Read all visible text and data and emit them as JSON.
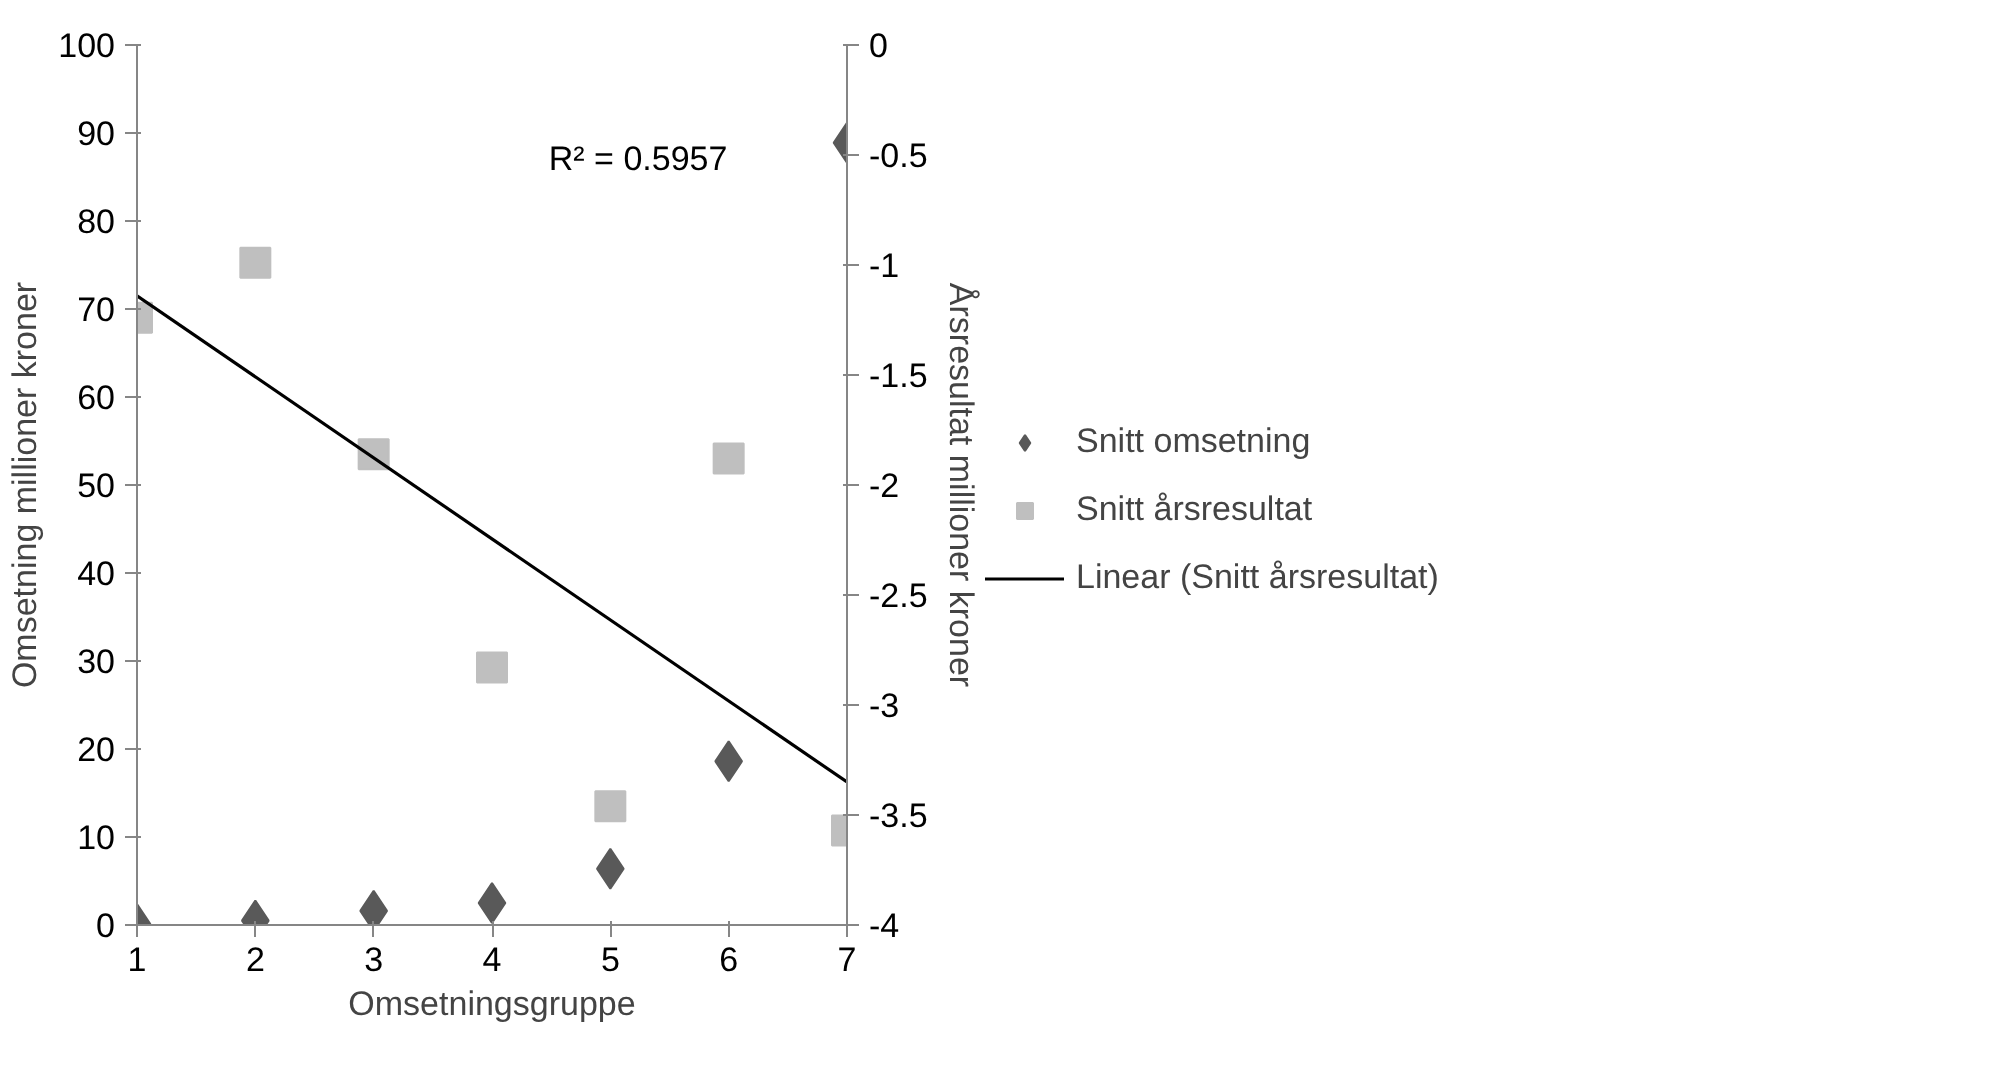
{
  "chart_data": {
    "type": "scatter",
    "xlabel": "Omsetningsgruppe",
    "ylabel": "Omsetning millioner kroner",
    "y2label": "Årsresultat millioner kroner",
    "x": [
      1,
      2,
      3,
      4,
      5,
      6,
      7
    ],
    "series": [
      {
        "name": "Snitt omsetning",
        "color": "#595959",
        "marker": "diamond",
        "values": [
          0.1,
          0.5,
          1.6,
          2.5,
          6.4,
          18.6,
          88.9
        ]
      },
      {
        "name": "Snitt årsresultat",
        "color": "#bfbfbf",
        "marker": "square",
        "axis": "y2",
        "values": [
          -1.24,
          -0.99,
          -1.86,
          -2.83,
          -3.46,
          -1.88,
          -3.57
        ]
      },
      {
        "name": "Linear (Snitt årsresultat)",
        "type": "line",
        "color": "#000000",
        "axis": "y2",
        "x": [
          1,
          7
        ],
        "values": [
          -1.14,
          -3.35
        ]
      }
    ],
    "annotations": [
      "R² = 0.5957"
    ],
    "xlim": [
      1,
      7
    ],
    "xticks": [
      1,
      2,
      3,
      4,
      5,
      6,
      7
    ],
    "ylim": [
      0,
      100
    ],
    "yticks": [
      0,
      10,
      20,
      30,
      40,
      50,
      60,
      70,
      80,
      90,
      100
    ],
    "y2lim": [
      -4,
      0
    ],
    "y2ticks": [
      -4,
      -3.5,
      -3,
      -2.5,
      -2,
      -1.5,
      -1,
      -0.5,
      0
    ],
    "grid": false,
    "legend": "right"
  }
}
